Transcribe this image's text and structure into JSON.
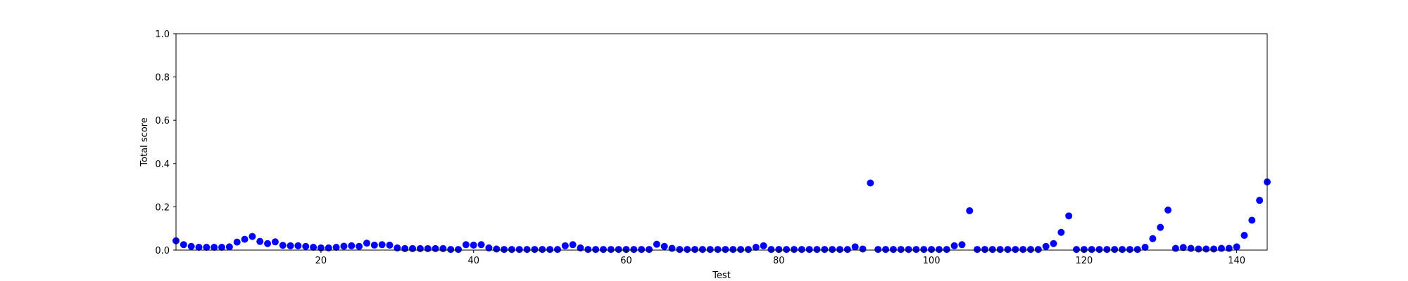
{
  "chart_data": {
    "type": "scatter",
    "title": "",
    "xlabel": "Test",
    "ylabel": "Total score",
    "xlim": [
      1,
      144
    ],
    "ylim": [
      0.0,
      1.0
    ],
    "x_ticks": [
      {
        "value": 20,
        "label": "20"
      },
      {
        "value": 40,
        "label": "40"
      },
      {
        "value": 60,
        "label": "60"
      },
      {
        "value": 80,
        "label": "80"
      },
      {
        "value": 100,
        "label": "100"
      },
      {
        "value": 120,
        "label": "120"
      },
      {
        "value": 140,
        "label": "140"
      }
    ],
    "y_ticks": [
      {
        "value": 0.0,
        "label": "0.0"
      },
      {
        "value": 0.2,
        "label": "0.2"
      },
      {
        "value": 0.4,
        "label": "0.4"
      },
      {
        "value": 0.6,
        "label": "0.6"
      },
      {
        "value": 0.8,
        "label": "0.8"
      },
      {
        "value": 1.0,
        "label": "1.0"
      }
    ],
    "grid": false,
    "marker_color": "#0000ff",
    "series": [
      {
        "x": [
          1,
          2,
          3,
          4,
          5,
          6,
          7,
          8,
          9,
          10,
          11,
          12,
          13,
          14,
          15,
          16,
          17,
          18,
          19,
          20,
          21,
          22,
          23,
          24,
          25,
          26,
          27,
          28,
          29,
          30,
          31,
          32,
          33,
          34,
          35,
          36,
          37,
          38,
          39,
          40,
          41,
          42,
          43,
          44,
          45,
          46,
          47,
          48,
          49,
          50,
          51,
          52,
          53,
          54,
          55,
          56,
          57,
          58,
          59,
          60,
          61,
          62,
          63,
          64,
          65,
          66,
          67,
          68,
          69,
          70,
          71,
          72,
          73,
          74,
          75,
          76,
          77,
          78,
          79,
          80,
          81,
          82,
          83,
          84,
          85,
          86,
          87,
          88,
          89,
          90,
          91,
          92,
          93,
          94,
          95,
          96,
          97,
          98,
          99,
          100,
          101,
          102,
          103,
          104,
          105,
          106,
          107,
          108,
          109,
          110,
          111,
          112,
          113,
          114,
          115,
          116,
          117,
          118,
          119,
          120,
          121,
          122,
          123,
          124,
          125,
          126,
          127,
          128,
          129,
          130,
          131,
          132,
          133,
          134,
          135,
          136,
          137,
          138,
          139,
          140,
          141,
          142,
          143,
          144
        ],
        "y": [
          0.043,
          0.025,
          0.017,
          0.013,
          0.013,
          0.013,
          0.013,
          0.015,
          0.037,
          0.05,
          0.063,
          0.04,
          0.03,
          0.038,
          0.022,
          0.02,
          0.02,
          0.017,
          0.013,
          0.01,
          0.01,
          0.013,
          0.018,
          0.02,
          0.017,
          0.032,
          0.023,
          0.025,
          0.023,
          0.01,
          0.007,
          0.007,
          0.007,
          0.007,
          0.007,
          0.007,
          0.003,
          0.003,
          0.025,
          0.023,
          0.025,
          0.01,
          0.005,
          0.003,
          0.003,
          0.003,
          0.003,
          0.003,
          0.003,
          0.003,
          0.003,
          0.02,
          0.025,
          0.01,
          0.003,
          0.003,
          0.003,
          0.003,
          0.003,
          0.003,
          0.003,
          0.003,
          0.003,
          0.027,
          0.017,
          0.008,
          0.003,
          0.003,
          0.003,
          0.003,
          0.003,
          0.003,
          0.003,
          0.003,
          0.003,
          0.003,
          0.013,
          0.02,
          0.003,
          0.003,
          0.003,
          0.003,
          0.003,
          0.003,
          0.003,
          0.003,
          0.003,
          0.003,
          0.003,
          0.015,
          0.005,
          0.31,
          0.003,
          0.003,
          0.003,
          0.003,
          0.003,
          0.003,
          0.003,
          0.003,
          0.003,
          0.003,
          0.02,
          0.025,
          0.182,
          0.003,
          0.003,
          0.003,
          0.003,
          0.003,
          0.003,
          0.003,
          0.003,
          0.003,
          0.017,
          0.03,
          0.082,
          0.158,
          0.003,
          0.003,
          0.003,
          0.003,
          0.003,
          0.003,
          0.003,
          0.003,
          0.003,
          0.013,
          0.053,
          0.105,
          0.185,
          0.008,
          0.012,
          0.008,
          0.005,
          0.005,
          0.005,
          0.008,
          0.008,
          0.015,
          0.068,
          0.138,
          0.23,
          0.315
        ]
      }
    ]
  }
}
